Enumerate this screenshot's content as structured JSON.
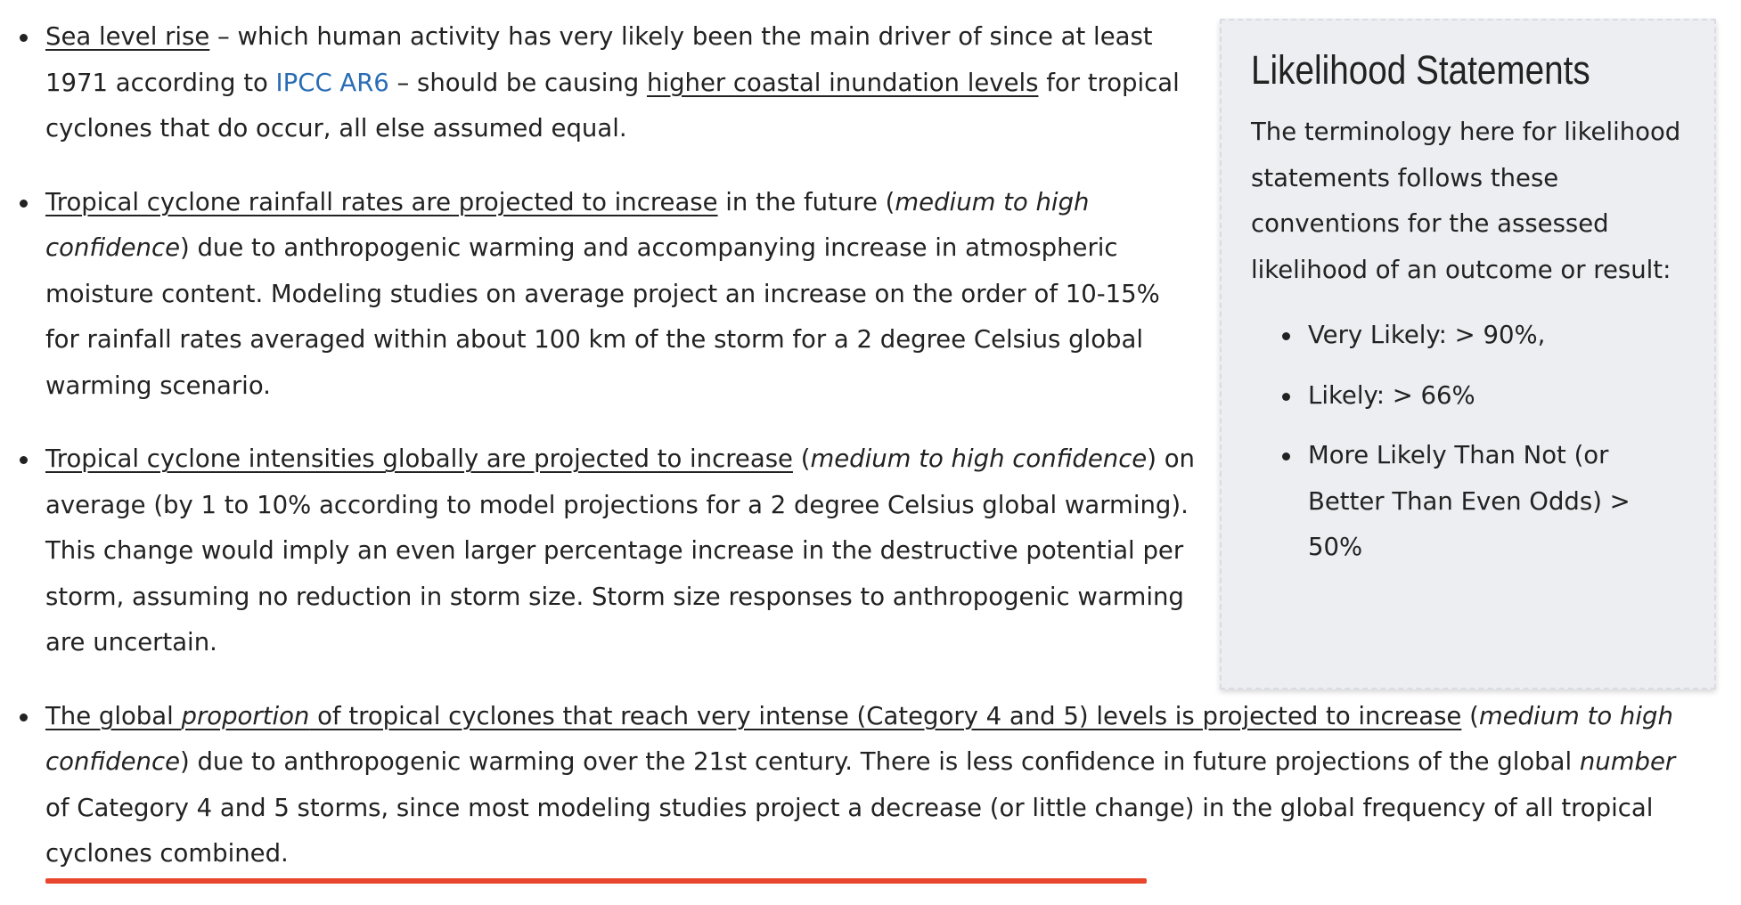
{
  "bullets": {
    "b1": {
      "u1": "Sea level rise",
      "t1": " – which human activity has very likely been the main driver of since at least 1971 according to ",
      "link": "IPCC AR6",
      "t2": " – should be causing ",
      "u2": "higher coastal inundation levels",
      "t3": " for tropical cyclones that do occur, all else assumed equal."
    },
    "b2": {
      "u1": "Tropical cyclone rainfall rates are projected to increase",
      "t1": " in the future (",
      "i1": "medium to high confidence",
      "t2": ") due to anthropogenic warming and accompanying increase in atmospheric moisture content. Modeling studies on average project an increase on the order of 10-15% for rainfall rates averaged within about 100 km of the storm for a 2 degree Celsius global warming scenario."
    },
    "b3": {
      "u1": "Tropical cyclone intensities globally are projected to increase",
      "t1": " (",
      "i1": "medium to high confidence",
      "t2": ") on average (by 1 to 10% according to model projections for a 2 degree Celsius global warming). This change would imply an even larger percentage increase in the destructive potential per storm, assuming no reduction in storm size. Storm size responses to anthropogenic warming are uncertain."
    },
    "b4": {
      "u1": "The global ",
      "u_i": "proportion",
      "u2": " of tropical cyclones that reach very intense (Category 4 and 5) levels is projected to increase",
      "t1": " (",
      "i1": "medium to high confidence",
      "t2": ") due to anthropogenic warming over the 21st century. There is less confidence in future projections of the global ",
      "i2": "number",
      "t3": " of Category 4 and 5 storms, since most modeling studies project a decrease (or little change) in the global frequency of all tropical cyclones combined."
    }
  },
  "sidebar": {
    "title": "Likelihood Statements",
    "intro": "The terminology here for likelihood statements follows these conventions for the assessed likelihood of an outcome or result:",
    "items": [
      "Very Likely: > 90%,",
      "Likely: > 66%",
      "More Likely Than Not (or Better Than Even Odds) > 50%"
    ]
  },
  "colors": {
    "link": "#2a6db5",
    "highlight": "#e8472e",
    "sidebar_bg": "#eceef2"
  }
}
